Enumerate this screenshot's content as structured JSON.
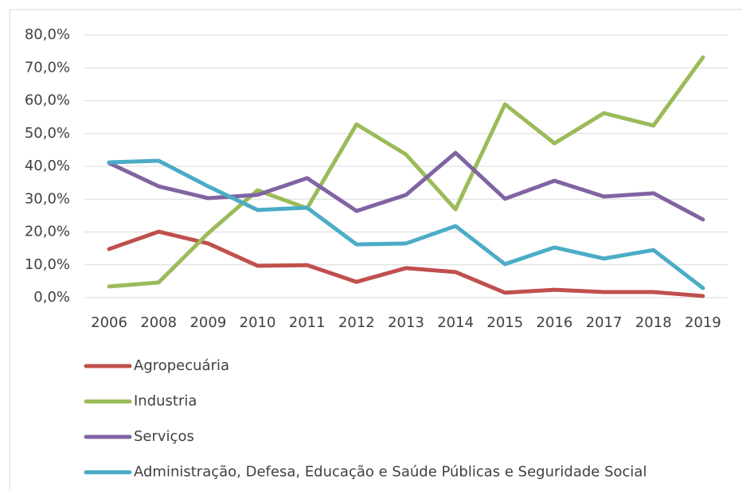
{
  "chart_data": {
    "type": "line",
    "categories": [
      "2006",
      "2008",
      "2009",
      "2010",
      "2011",
      "2012",
      "2013",
      "2014",
      "2015",
      "2016",
      "2017",
      "2018",
      "2019"
    ],
    "series": [
      {
        "name": "Agropecuária",
        "color": "#c0504d",
        "values": [
          14.8,
          20.1,
          16.5,
          9.7,
          9.9,
          4.8,
          9.0,
          7.8,
          1.5,
          2.4,
          1.7,
          1.7,
          0.5
        ]
      },
      {
        "name": "Industria",
        "color": "#9bbb59",
        "values": [
          3.4,
          4.6,
          19.6,
          32.7,
          27.2,
          52.8,
          43.6,
          26.9,
          58.9,
          47.0,
          56.2,
          52.4,
          73.2
        ]
      },
      {
        "name": "Serviços",
        "color": "#8064a2",
        "values": [
          41.0,
          33.9,
          30.3,
          31.3,
          36.4,
          26.4,
          31.3,
          44.1,
          30.1,
          35.6,
          30.8,
          31.8,
          23.8
        ]
      },
      {
        "name": "Administração, Defesa, Educação e Saúde Públicas e Seguridade Social",
        "color": "#4bacc6",
        "values": [
          41.2,
          41.7,
          33.9,
          26.7,
          27.4,
          16.2,
          16.5,
          21.8,
          10.2,
          15.3,
          11.9,
          14.5,
          2.9
        ]
      }
    ],
    "ylim": [
      0,
      80
    ],
    "yticks": [
      {
        "value": 0,
        "label": "0,0%"
      },
      {
        "value": 10,
        "label": "10,0%"
      },
      {
        "value": 20,
        "label": "20,0%"
      },
      {
        "value": 30,
        "label": "30,0%"
      },
      {
        "value": 40,
        "label": "40,0%"
      },
      {
        "value": 50,
        "label": "50,0%"
      },
      {
        "value": 60,
        "label": "60,0%"
      },
      {
        "value": 70,
        "label": "70,0%"
      },
      {
        "value": 80,
        "label": "80,0%"
      }
    ],
    "grid": true,
    "legend": "bottom"
  }
}
